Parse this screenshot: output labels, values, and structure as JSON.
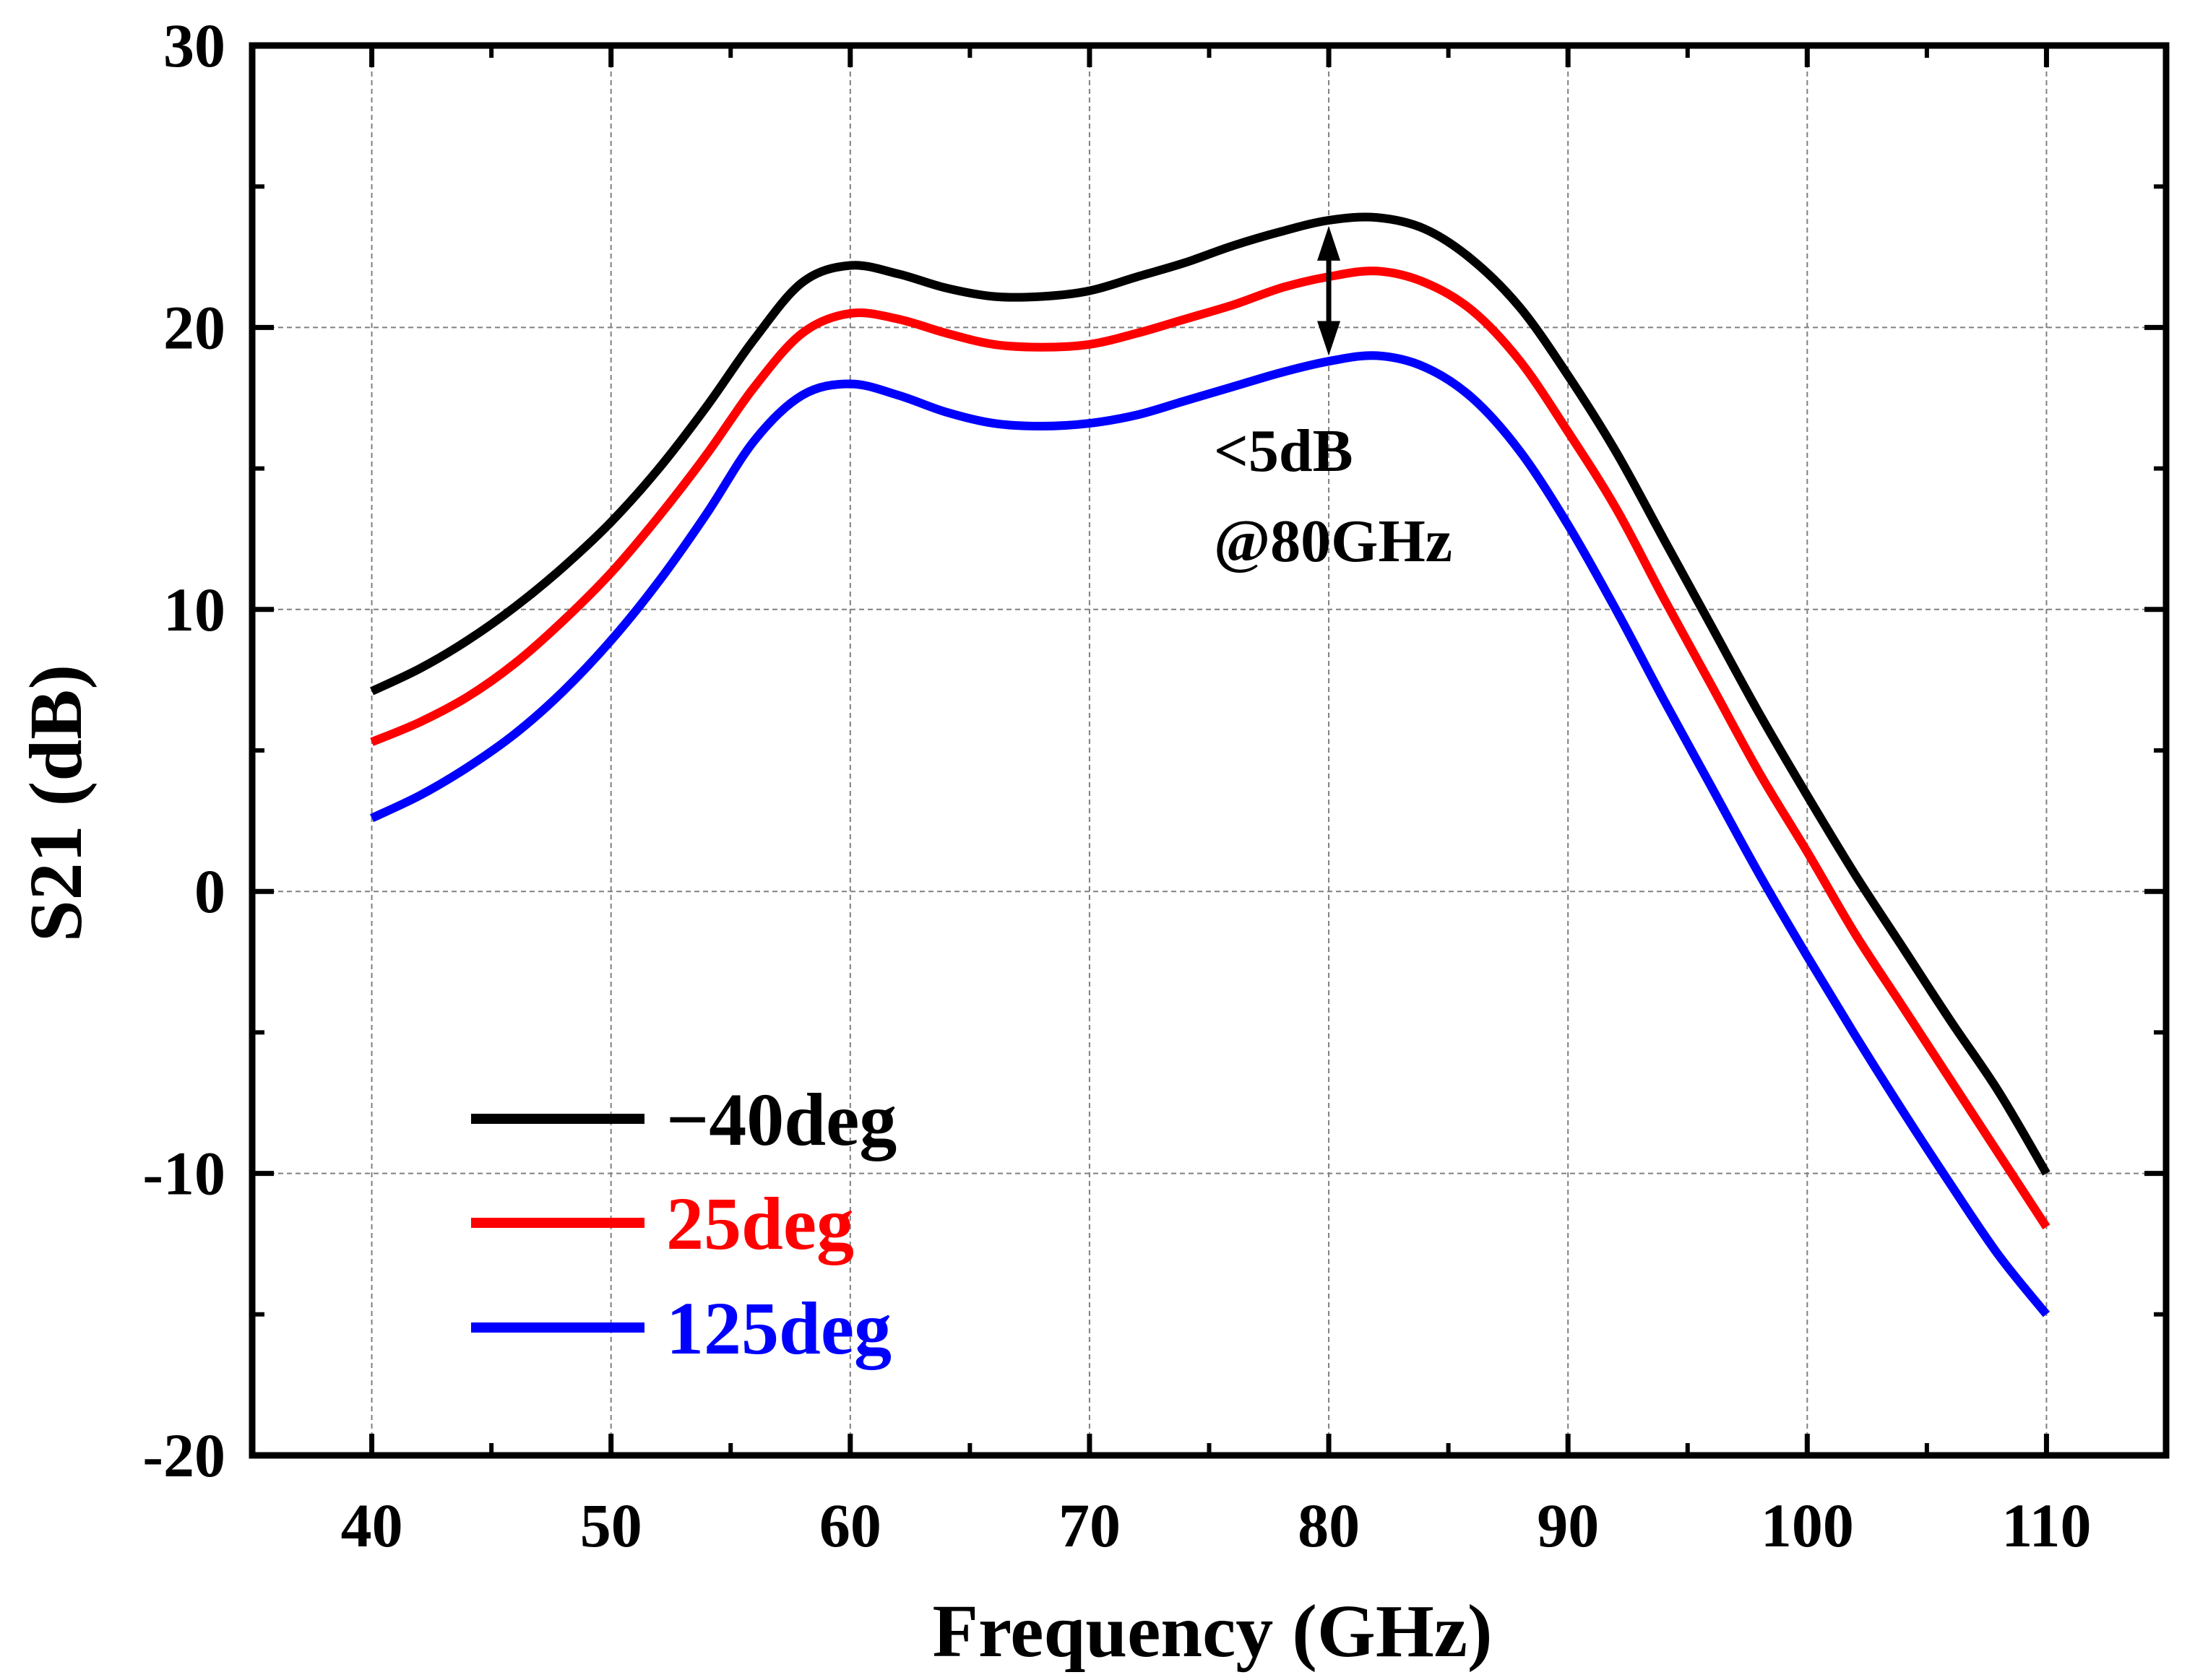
{
  "chart_data": {
    "type": "line",
    "title": "",
    "xlabel": "Frequency (GHz)",
    "ylabel": "S21 (dB)",
    "xlim": [
      35,
      115
    ],
    "ylim": [
      -20,
      30
    ],
    "x_ticks": [
      40,
      50,
      60,
      70,
      80,
      90,
      100,
      110
    ],
    "x_tick_labels": [
      "40",
      "50",
      "60",
      "70",
      "80",
      "90",
      "100",
      "110"
    ],
    "y_ticks": [
      -20,
      -10,
      0,
      10,
      20,
      30
    ],
    "y_tick_labels": [
      "-20",
      "-10",
      "0",
      "10",
      "20",
      "30"
    ],
    "grid": true,
    "legend_position": "bottom-left",
    "x": [
      40,
      42,
      44,
      46,
      48,
      50,
      52,
      54,
      56,
      58,
      60,
      62,
      64,
      66,
      68,
      70,
      72,
      74,
      76,
      78,
      80,
      82,
      84,
      86,
      88,
      90,
      92,
      94,
      96,
      98,
      100,
      102,
      104,
      106,
      108,
      110
    ],
    "series": [
      {
        "name": "−40deg",
        "color": "#000000",
        "values": [
          7.1,
          7.9,
          8.9,
          10.1,
          11.5,
          13.1,
          15.0,
          17.2,
          19.6,
          21.6,
          22.2,
          21.9,
          21.4,
          21.1,
          21.1,
          21.3,
          21.8,
          22.3,
          22.9,
          23.4,
          23.8,
          23.9,
          23.5,
          22.4,
          20.7,
          18.3,
          15.6,
          12.5,
          9.4,
          6.3,
          3.4,
          0.6,
          -2.0,
          -4.6,
          -7.1,
          -10.0
        ]
      },
      {
        "name": "25deg",
        "color": "#ff0000",
        "values": [
          5.3,
          6.0,
          6.9,
          8.1,
          9.6,
          11.3,
          13.3,
          15.5,
          17.9,
          19.8,
          20.5,
          20.3,
          19.8,
          19.4,
          19.3,
          19.4,
          19.8,
          20.3,
          20.8,
          21.4,
          21.8,
          22.0,
          21.6,
          20.6,
          18.8,
          16.3,
          13.6,
          10.4,
          7.3,
          4.2,
          1.4,
          -1.5,
          -4.1,
          -6.7,
          -9.3,
          -11.9
        ]
      },
      {
        "name": "125deg",
        "color": "#0000ff",
        "values": [
          2.6,
          3.4,
          4.4,
          5.6,
          7.1,
          8.9,
          11.0,
          13.4,
          16.0,
          17.6,
          18.0,
          17.6,
          17.0,
          16.6,
          16.5,
          16.6,
          16.9,
          17.4,
          17.9,
          18.4,
          18.8,
          19.0,
          18.6,
          17.5,
          15.6,
          13.0,
          10.0,
          6.8,
          3.7,
          0.6,
          -2.3,
          -5.1,
          -7.8,
          -10.4,
          -12.9,
          -15.0
        ]
      }
    ],
    "annotation": {
      "line1": "<5dB",
      "line2": "@80GHz",
      "arrow_x": 80,
      "arrow_y_top": 23.6,
      "arrow_y_bottom": 19.0
    }
  }
}
